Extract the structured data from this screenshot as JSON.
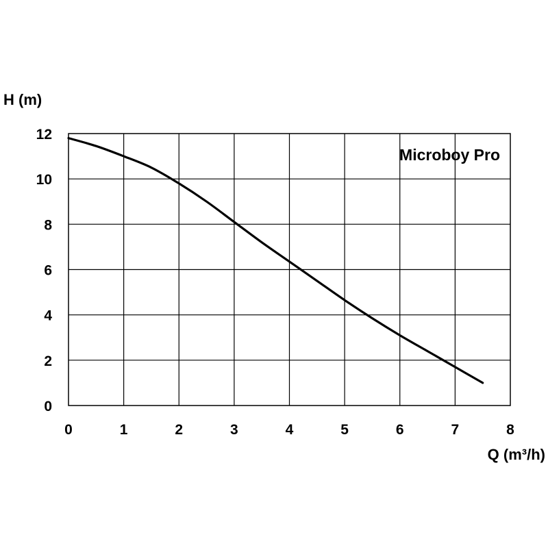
{
  "chart_data": {
    "type": "line",
    "title": "",
    "xlabel": "Q (m³/h)",
    "ylabel": "H (m)",
    "xlim": [
      0,
      8
    ],
    "ylim": [
      0,
      12
    ],
    "xticks": [
      0,
      1,
      2,
      3,
      4,
      5,
      6,
      7,
      8
    ],
    "yticks": [
      0,
      2,
      4,
      6,
      8,
      10,
      12
    ],
    "grid": true,
    "annotation": "Microboy Pro",
    "series": [
      {
        "name": "Microboy Pro",
        "color": "#000000",
        "x": [
          0,
          0.5,
          1.0,
          1.5,
          2.0,
          2.5,
          3.0,
          3.5,
          4.0,
          4.5,
          5.0,
          5.5,
          6.0,
          6.5,
          7.0,
          7.5
        ],
        "y": [
          11.8,
          11.45,
          11.0,
          10.5,
          9.8,
          9.0,
          8.1,
          7.2,
          6.35,
          5.5,
          4.65,
          3.85,
          3.1,
          2.4,
          1.7,
          1.0
        ]
      }
    ]
  }
}
